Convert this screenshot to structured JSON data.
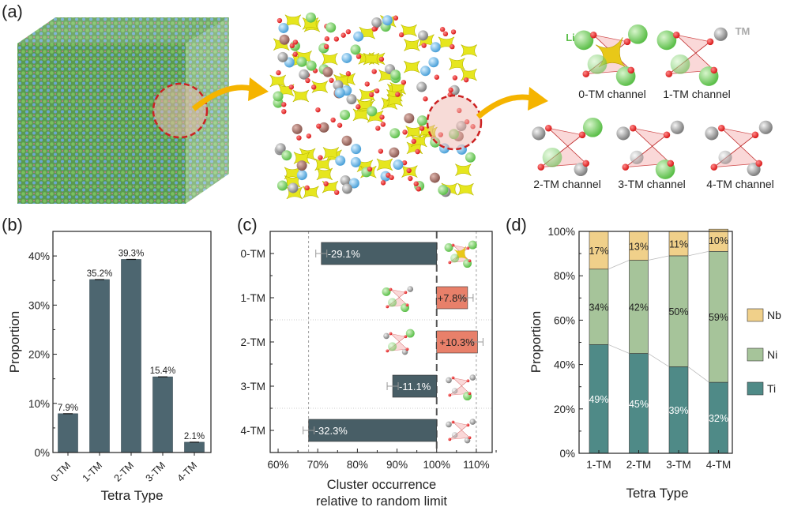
{
  "panel_a": {
    "label": "(a)",
    "li_label": "Li",
    "tm_label": "TM",
    "channels": [
      "0-TM channel",
      "1-TM channel",
      "2-TM channel",
      "3-TM channel",
      "4-TM channel"
    ],
    "colors": {
      "li": "#5cbf4a",
      "tm": "#9a9a9a",
      "oxygen": "#d81818",
      "channel": "#e8d020",
      "highlight": "#cc2222",
      "arrow": "#f5b400"
    }
  },
  "chart_data": [
    {
      "panel_label": "(b)",
      "type": "bar",
      "categories": [
        "0-TM",
        "1-TM",
        "2-TM",
        "3-TM",
        "4-TM"
      ],
      "values": [
        7.9,
        35.2,
        39.3,
        15.4,
        2.1
      ],
      "data_labels": [
        "7.9%",
        "35.2%",
        "39.3%",
        "15.4%",
        "2.1%"
      ],
      "xlabel": "Tetra Type",
      "ylabel": "Proportion",
      "ylim": [
        0,
        45
      ],
      "yticks": [
        "0%",
        "10%",
        "20%",
        "30%",
        "40%"
      ],
      "error_bars": true,
      "grid": false,
      "color": "#4d6670"
    },
    {
      "panel_label": "(c)",
      "type": "bar",
      "orientation": "horizontal",
      "baseline": 100,
      "categories": [
        "0-TM",
        "1-TM",
        "2-TM",
        "3-TM",
        "4-TM"
      ],
      "values": [
        70.9,
        107.8,
        110.3,
        88.9,
        67.7
      ],
      "data_labels": [
        "-29.1%",
        "+7.8%",
        "+10.3%",
        "-11.1%",
        "-32.3%"
      ],
      "xlabel": [
        "Cluster occurrence",
        "relative to random limit"
      ],
      "xlim": [
        58,
        114
      ],
      "xticks": [
        "60%",
        "70%",
        "80%",
        "90%",
        "100%",
        "110%"
      ],
      "reference_lines": [
        67.7,
        100,
        110
      ],
      "error_bars": true,
      "colors": {
        "negative": "#485e66",
        "positive": "#e8806a"
      }
    },
    {
      "panel_label": "(d)",
      "type": "bar",
      "stacked": true,
      "categories": [
        "1-TM",
        "2-TM",
        "3-TM",
        "4-TM"
      ],
      "series": [
        {
          "name": "Ti",
          "values": [
            49,
            45,
            39,
            32
          ],
          "labels": [
            "49%",
            "45%",
            "39%",
            "32%"
          ],
          "color": "#4f8a87"
        },
        {
          "name": "Ni",
          "values": [
            34,
            42,
            50,
            59
          ],
          "labels": [
            "34%",
            "42%",
            "50%",
            "59%"
          ],
          "color": "#a6c49a"
        },
        {
          "name": "Nb",
          "values": [
            17,
            13,
            11,
            10
          ],
          "labels": [
            "17%",
            "13%",
            "11%",
            "10%"
          ],
          "color": "#f0d08a"
        }
      ],
      "legend_order": [
        "Nb",
        "Ni",
        "Ti"
      ],
      "legend": "right",
      "xlabel": "Tetra Type",
      "ylabel": "Proportion",
      "ylim": [
        0,
        100
      ],
      "yticks": [
        "0%",
        "20%",
        "40%",
        "60%",
        "80%",
        "100%"
      ]
    }
  ]
}
